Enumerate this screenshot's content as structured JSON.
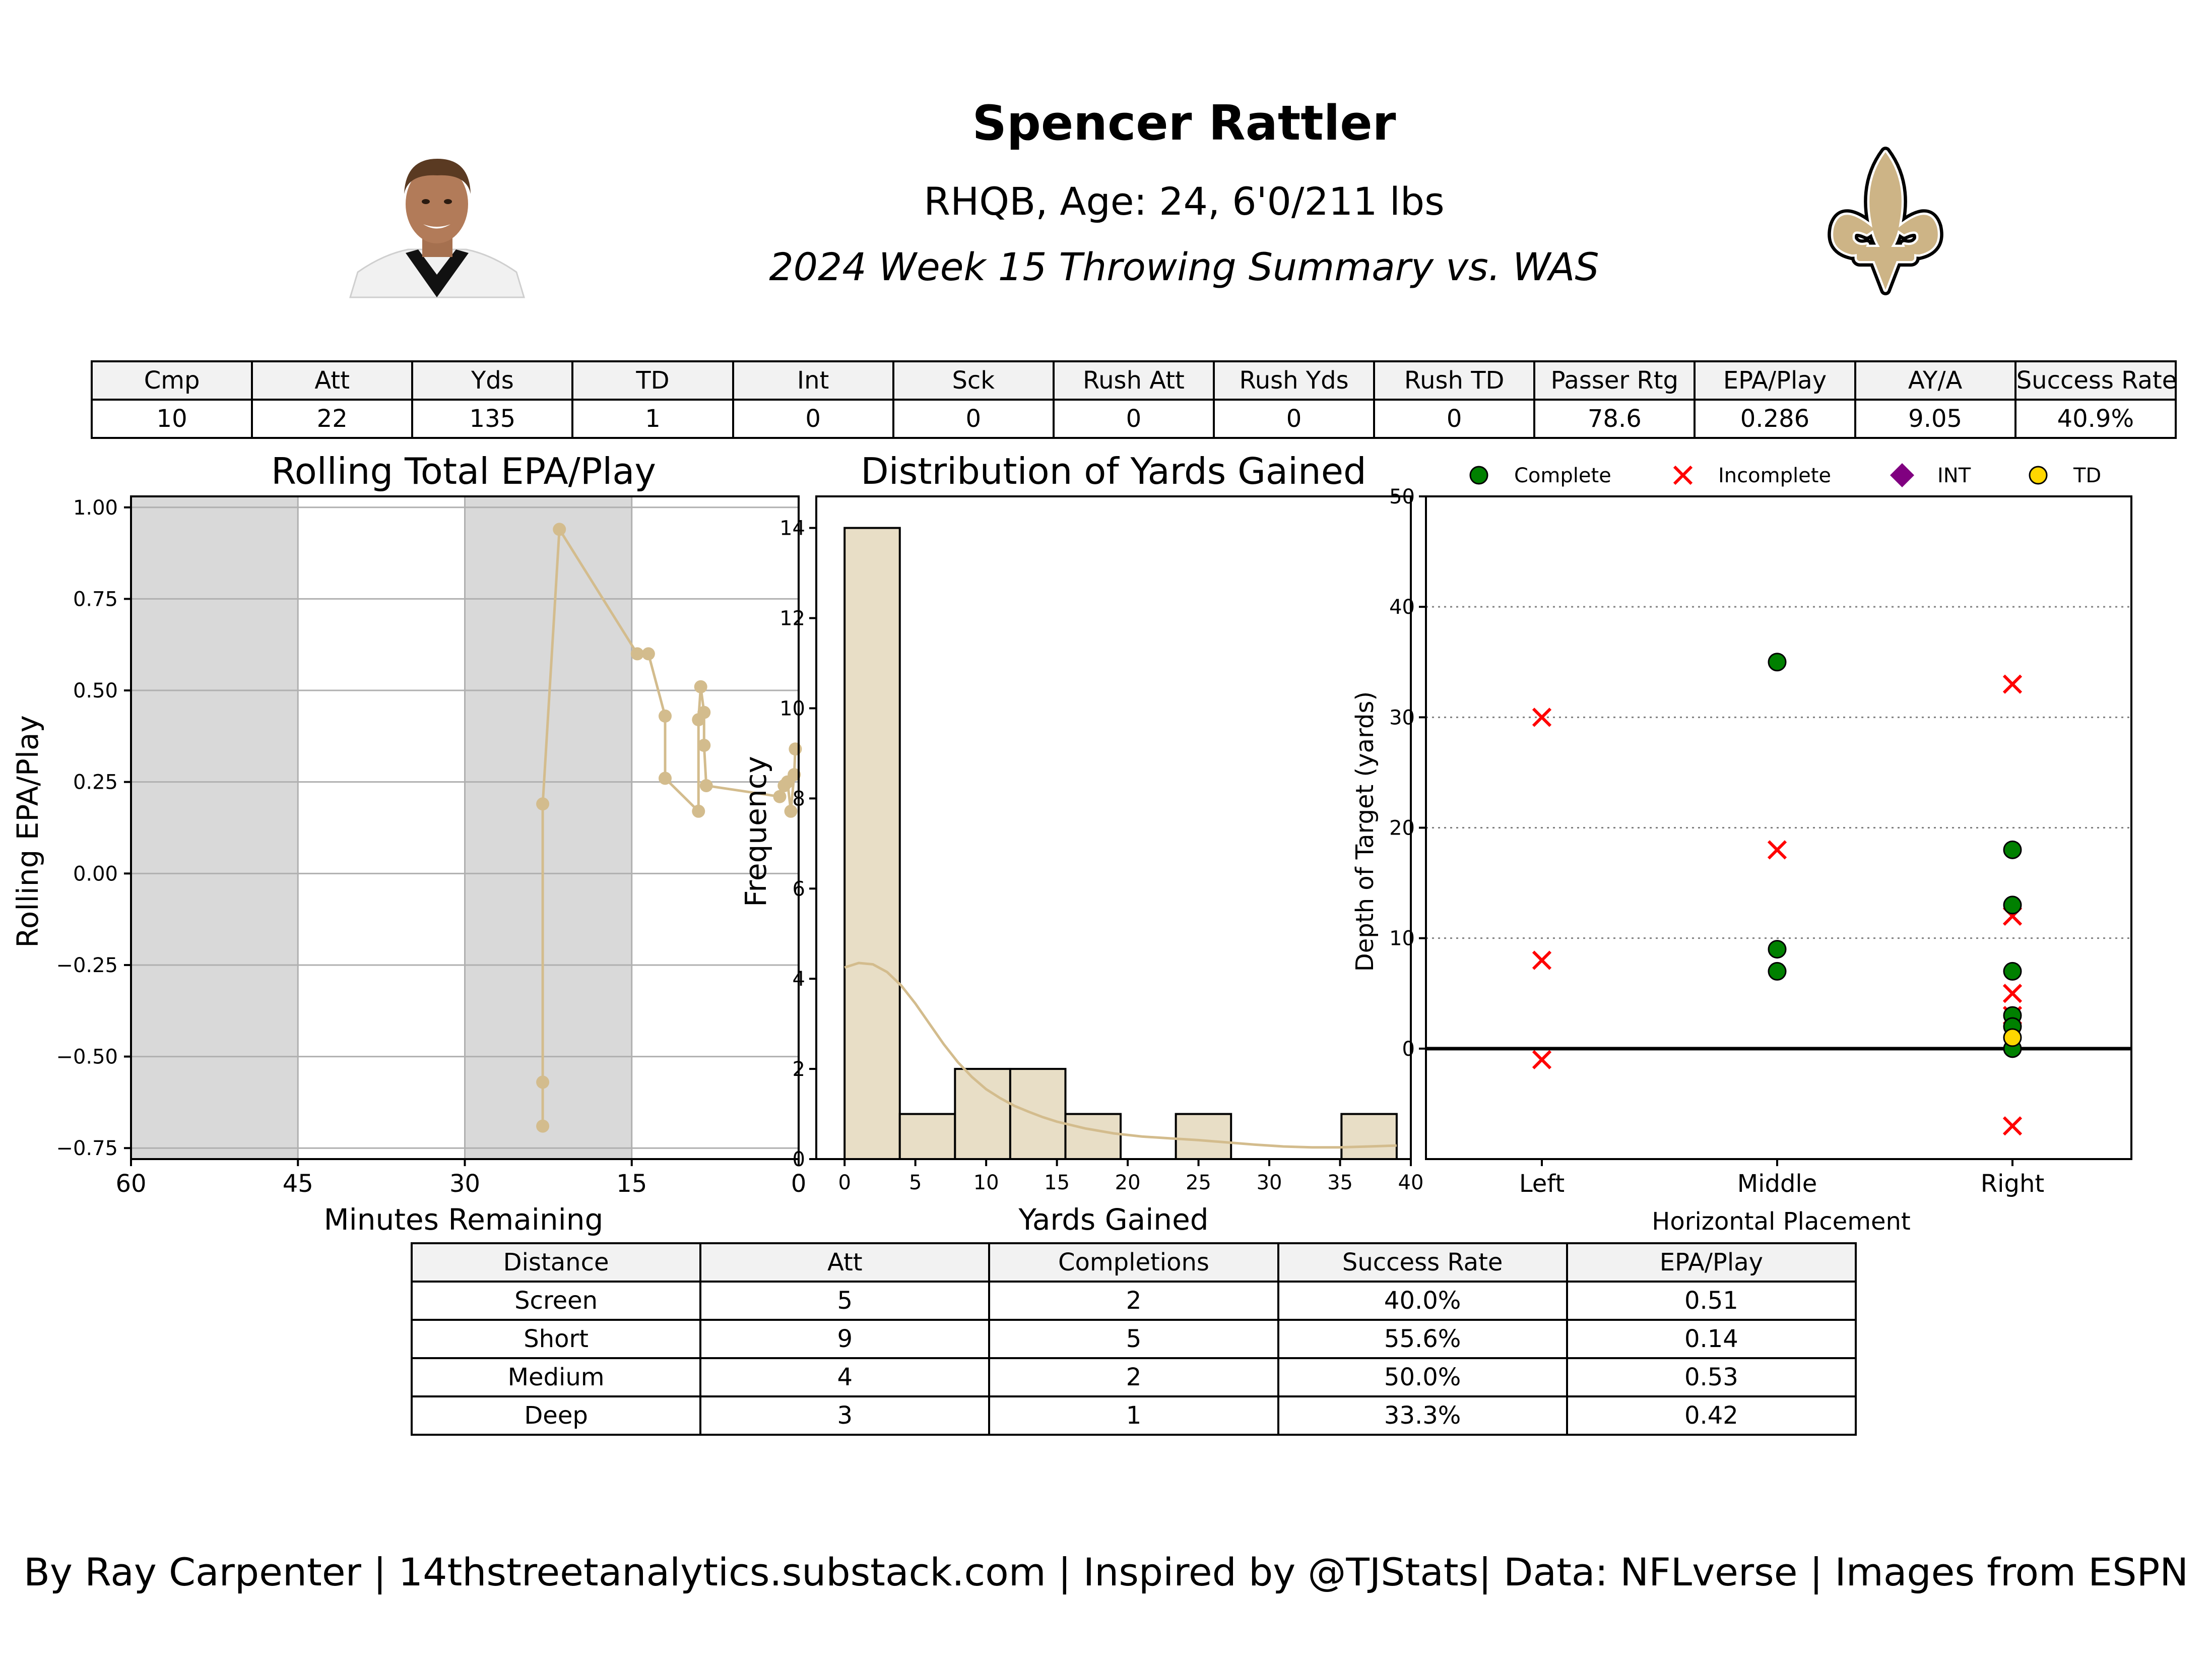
{
  "header": {
    "title": "Spencer Rattler",
    "subtitle1": "RHQB, Age: 24, 6'0/211 lbs",
    "subtitle2": "2024 Week 15 Throwing Summary vs. WAS"
  },
  "summary_table": {
    "headers": [
      "Cmp",
      "Att",
      "Yds",
      "TD",
      "Int",
      "Sck",
      "Rush Att",
      "Rush Yds",
      "Rush TD",
      "Passer Rtg",
      "EPA/Play",
      "AY/A",
      "Success Rate"
    ],
    "values": [
      "10",
      "22",
      "135",
      "1",
      "0",
      "0",
      "0",
      "0",
      "0",
      "78.6",
      "0.286",
      "9.05",
      "40.9%"
    ]
  },
  "colors": {
    "accent_gold": "#d3bc8d",
    "hist_fill": "#e8dec6",
    "shade": "#d9d9d9",
    "complete": "#008000",
    "incomplete": "#ff0000",
    "int": "#800080",
    "td": "#ffd700"
  },
  "icons": {
    "player_photo": "player-headshot",
    "team_logo": "fleur-de-lis-logo"
  },
  "chart_data": [
    {
      "type": "line",
      "title": "Rolling Total EPA/Play",
      "xlabel": "Minutes Remaining",
      "ylabel": "Rolling EPA/Play",
      "xlim": [
        60,
        0
      ],
      "ylim": [
        -0.78,
        1.03
      ],
      "x_ticks": [
        "60",
        "45",
        "30",
        "15",
        "0"
      ],
      "x_tick_values": [
        60,
        45,
        30,
        15,
        0
      ],
      "y_ticks": [
        "1.00",
        "0.75",
        "0.50",
        "0.25",
        "0.00",
        "−0.25",
        "−0.50",
        "−0.75"
      ],
      "y_tick_values": [
        1.0,
        0.75,
        0.5,
        0.25,
        0.0,
        -0.25,
        -0.5,
        -0.75
      ],
      "shaded_ranges": [
        [
          60,
          45
        ],
        [
          30,
          15
        ]
      ],
      "grid": true,
      "points": [
        {
          "x": 23.0,
          "y": -0.69
        },
        {
          "x": 23.0,
          "y": -0.57
        },
        {
          "x": 23.0,
          "y": 0.19
        },
        {
          "x": 21.5,
          "y": 0.94
        },
        {
          "x": 14.5,
          "y": 0.6
        },
        {
          "x": 13.5,
          "y": 0.6
        },
        {
          "x": 12.0,
          "y": 0.43
        },
        {
          "x": 12.0,
          "y": 0.26
        },
        {
          "x": 9.0,
          "y": 0.17
        },
        {
          "x": 9.0,
          "y": 0.42
        },
        {
          "x": 8.8,
          "y": 0.51
        },
        {
          "x": 8.5,
          "y": 0.44
        },
        {
          "x": 8.5,
          "y": 0.35
        },
        {
          "x": 8.3,
          "y": 0.24
        },
        {
          "x": 1.7,
          "y": 0.21
        },
        {
          "x": 1.3,
          "y": 0.24
        },
        {
          "x": 1.0,
          "y": 0.25
        },
        {
          "x": 0.7,
          "y": 0.17
        },
        {
          "x": 0.4,
          "y": 0.27
        },
        {
          "x": 0.3,
          "y": 0.34
        }
      ]
    },
    {
      "type": "bar",
      "title": "Distribution of Yards Gained",
      "xlabel": "Yards Gained",
      "ylabel": "Frequency",
      "xlim": [
        -2,
        40
      ],
      "ylim": [
        0,
        14.7
      ],
      "x_ticks": [
        "0",
        "5",
        "10",
        "15",
        "20",
        "25",
        "30",
        "35",
        "40"
      ],
      "x_tick_values": [
        0,
        5,
        10,
        15,
        20,
        25,
        30,
        35,
        40
      ],
      "y_ticks": [
        "0",
        "2",
        "4",
        "6",
        "8",
        "10",
        "12",
        "14"
      ],
      "y_tick_values": [
        0,
        2,
        4,
        6,
        8,
        10,
        12,
        14
      ],
      "bin_edges": [
        0,
        3.9,
        7.8,
        11.7,
        15.6,
        19.5,
        23.4,
        27.3,
        31.2,
        35.1,
        39
      ],
      "values": [
        14,
        1,
        2,
        2,
        1,
        0,
        1,
        0,
        0,
        1
      ],
      "kde": [
        {
          "x": 0,
          "y": 4.25
        },
        {
          "x": 1,
          "y": 4.35
        },
        {
          "x": 2,
          "y": 4.32
        },
        {
          "x": 3,
          "y": 4.15
        },
        {
          "x": 4,
          "y": 3.85
        },
        {
          "x": 5,
          "y": 3.45
        },
        {
          "x": 6,
          "y": 3.0
        },
        {
          "x": 7,
          "y": 2.55
        },
        {
          "x": 8,
          "y": 2.15
        },
        {
          "x": 9,
          "y": 1.82
        },
        {
          "x": 10,
          "y": 1.55
        },
        {
          "x": 11,
          "y": 1.35
        },
        {
          "x": 12,
          "y": 1.18
        },
        {
          "x": 13,
          "y": 1.05
        },
        {
          "x": 14,
          "y": 0.93
        },
        {
          "x": 15,
          "y": 0.83
        },
        {
          "x": 17,
          "y": 0.68
        },
        {
          "x": 19,
          "y": 0.57
        },
        {
          "x": 21,
          "y": 0.5
        },
        {
          "x": 23,
          "y": 0.46
        },
        {
          "x": 25,
          "y": 0.42
        },
        {
          "x": 27,
          "y": 0.37
        },
        {
          "x": 29,
          "y": 0.32
        },
        {
          "x": 31,
          "y": 0.28
        },
        {
          "x": 33,
          "y": 0.26
        },
        {
          "x": 35,
          "y": 0.26
        },
        {
          "x": 37,
          "y": 0.28
        },
        {
          "x": 39,
          "y": 0.3
        }
      ]
    },
    {
      "type": "scatter",
      "xlabel": "Horizontal Placement",
      "ylabel": "Depth of Target (yards)",
      "categories": [
        "Left",
        "Middle",
        "Right"
      ],
      "ylim": [
        -10,
        50
      ],
      "y_ticks": [
        "0",
        "10",
        "20",
        "30",
        "40",
        "50"
      ],
      "y_tick_values": [
        0,
        10,
        20,
        30,
        40,
        50
      ],
      "legend": {
        "placement": "top",
        "entries": [
          "Complete",
          "Incomplete",
          "INT",
          "TD"
        ]
      },
      "series": [
        {
          "name": "Complete",
          "points": [
            {
              "x": "Middle",
              "y": 35
            },
            {
              "x": "Middle",
              "y": 9
            },
            {
              "x": "Middle",
              "y": 7
            },
            {
              "x": "Right",
              "y": 18
            },
            {
              "x": "Right",
              "y": 13
            },
            {
              "x": "Right",
              "y": 7
            },
            {
              "x": "Right",
              "y": 3
            },
            {
              "x": "Right",
              "y": 2
            },
            {
              "x": "Right",
              "y": 0
            }
          ]
        },
        {
          "name": "Incomplete",
          "points": [
            {
              "x": "Left",
              "y": 30
            },
            {
              "x": "Left",
              "y": 8
            },
            {
              "x": "Left",
              "y": -1
            },
            {
              "x": "Middle",
              "y": 18
            },
            {
              "x": "Right",
              "y": 33
            },
            {
              "x": "Right",
              "y": 12
            },
            {
              "x": "Right",
              "y": 5
            },
            {
              "x": "Right",
              "y": 3
            },
            {
              "x": "Right",
              "y": -7
            }
          ]
        },
        {
          "name": "INT",
          "points": []
        },
        {
          "name": "TD",
          "points": [
            {
              "x": "Right",
              "y": 1
            }
          ]
        }
      ]
    }
  ],
  "depth_table": {
    "headers": [
      "Distance",
      "Att",
      "Completions",
      "Success Rate",
      "EPA/Play"
    ],
    "rows": [
      [
        "Screen",
        "5",
        "2",
        "40.0%",
        "0.51"
      ],
      [
        "Short",
        "9",
        "5",
        "55.6%",
        "0.14"
      ],
      [
        "Medium",
        "4",
        "2",
        "50.0%",
        "0.53"
      ],
      [
        "Deep",
        "3",
        "1",
        "33.3%",
        "0.42"
      ]
    ]
  },
  "footer": "By Ray Carpenter | 14thstreetanalytics.substack.com | Inspired by @TJStats| Data: NFLverse | Images from ESPN"
}
